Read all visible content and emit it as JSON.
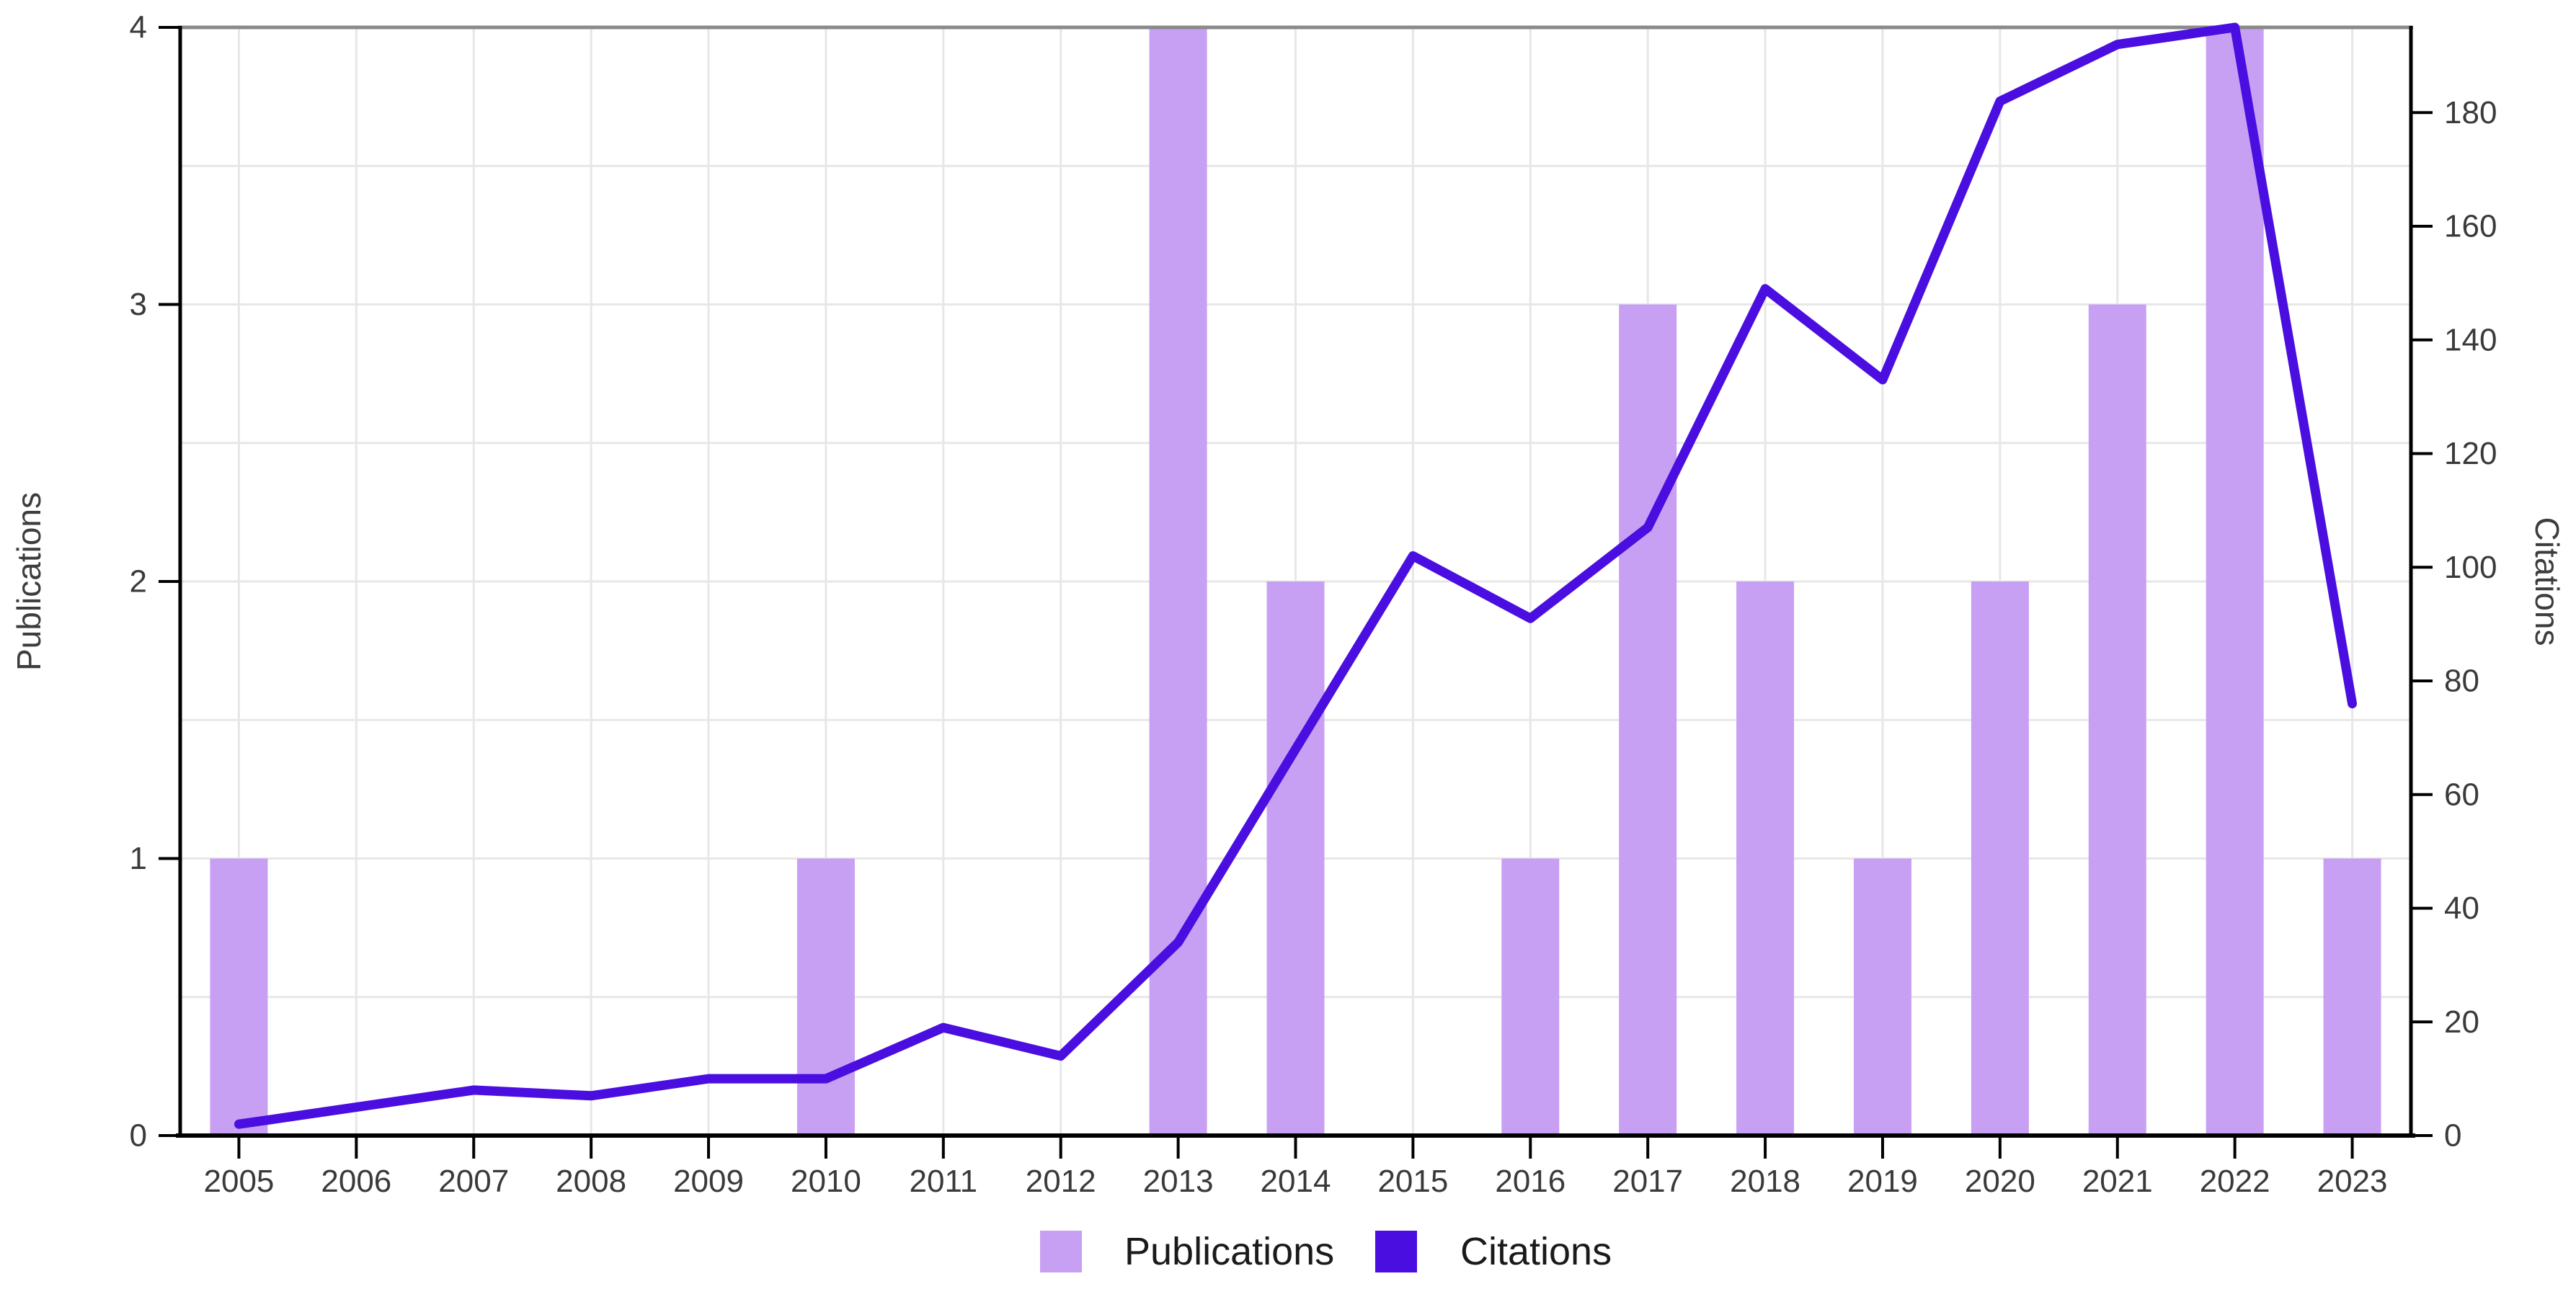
{
  "chart_data": {
    "type": "combo",
    "title": "",
    "categories": [
      "2005",
      "2006",
      "2007",
      "2008",
      "2009",
      "2010",
      "2011",
      "2012",
      "2013",
      "2014",
      "2015",
      "2016",
      "2017",
      "2018",
      "2019",
      "2020",
      "2021",
      "2022",
      "2023"
    ],
    "series": [
      {
        "name": "Publications",
        "type": "bar",
        "y_axis": "left",
        "color": "#c8a0f3",
        "values": [
          1,
          0,
          0,
          0,
          0,
          1,
          0,
          0,
          4,
          2,
          0,
          1,
          3,
          2,
          1,
          2,
          3,
          4,
          1
        ]
      },
      {
        "name": "Citations",
        "type": "line",
        "y_axis": "right",
        "color": "#4b0ee1",
        "values": [
          2,
          5,
          8,
          7,
          10,
          10,
          19,
          14,
          34,
          68,
          102,
          91,
          107,
          149,
          133,
          182,
          192,
          195,
          76
        ]
      }
    ],
    "left_axis": {
      "label": "Publications",
      "min": 0,
      "max": 4,
      "ticks": [
        0,
        1,
        2,
        3,
        4
      ]
    },
    "right_axis": {
      "label": "Citations",
      "min": 0,
      "max": 195,
      "ticks": [
        0,
        20,
        40,
        60,
        80,
        100,
        120,
        140,
        160,
        180
      ]
    },
    "x_axis": {
      "label": "",
      "ticks": [
        "2005",
        "2006",
        "2007",
        "2008",
        "2009",
        "2010",
        "2011",
        "2012",
        "2013",
        "2014",
        "2015",
        "2016",
        "2017",
        "2018",
        "2019",
        "2020",
        "2021",
        "2022",
        "2023"
      ]
    },
    "legend": {
      "position": "bottom",
      "entries": [
        "Publications",
        "Citations"
      ]
    },
    "grid": true,
    "colors": {
      "grid": "#e7e7e7",
      "axis": "#000000",
      "frame_top": "#8a8a8a",
      "tick_label": "#3a3a3a",
      "axis_title": "#3d3d3d",
      "background": "#ffffff"
    }
  }
}
